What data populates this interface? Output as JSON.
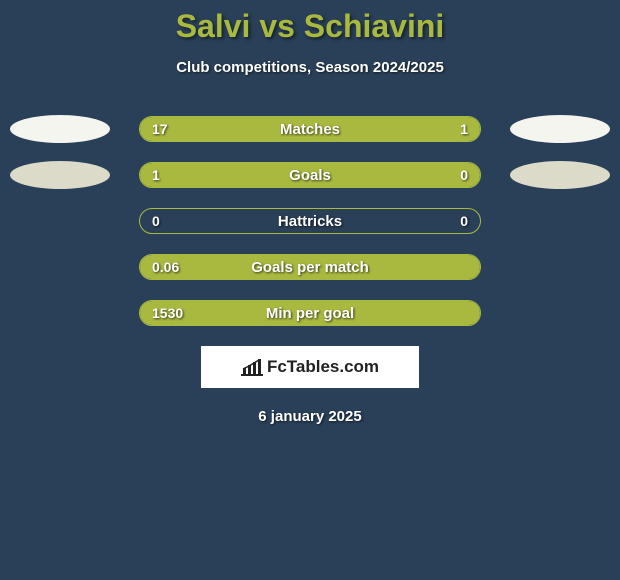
{
  "title": "Salvi vs Schiavini",
  "subtitle": "Club competitions, Season 2024/2025",
  "date": "6 january 2025",
  "logo_text": "FcTables.com",
  "colors": {
    "background": "#2a4058",
    "accent_green": "#a9b940",
    "ellipse_white": "#f5f5f0",
    "ellipse_dark": "#dcdac8",
    "bar_border": "#a9b940",
    "bar_fill": "#a9b940",
    "bar_fill_right": "#a9b940",
    "text_white": "#ffffff"
  },
  "rows": [
    {
      "label": "Matches",
      "left_value": "17",
      "right_value": "1",
      "left_pct": 80,
      "right_pct": 20,
      "show_right_fill": true,
      "show_ellipses": true,
      "ellipse_left_color": "#f5f5f0",
      "ellipse_right_color": "#f5f5f0"
    },
    {
      "label": "Goals",
      "left_value": "1",
      "right_value": "0",
      "left_pct": 80,
      "right_pct": 20,
      "show_right_fill": true,
      "show_ellipses": true,
      "ellipse_left_color": "#dcdac8",
      "ellipse_right_color": "#dcdac8"
    },
    {
      "label": "Hattricks",
      "left_value": "0",
      "right_value": "0",
      "left_pct": 0,
      "right_pct": 0,
      "show_right_fill": false,
      "show_ellipses": false
    },
    {
      "label": "Goals per match",
      "left_value": "0.06",
      "right_value": "",
      "left_pct": 100,
      "right_pct": 0,
      "show_right_fill": false,
      "show_ellipses": false
    },
    {
      "label": "Min per goal",
      "left_value": "1530",
      "right_value": "",
      "left_pct": 100,
      "right_pct": 0,
      "show_right_fill": false,
      "show_ellipses": false
    }
  ]
}
